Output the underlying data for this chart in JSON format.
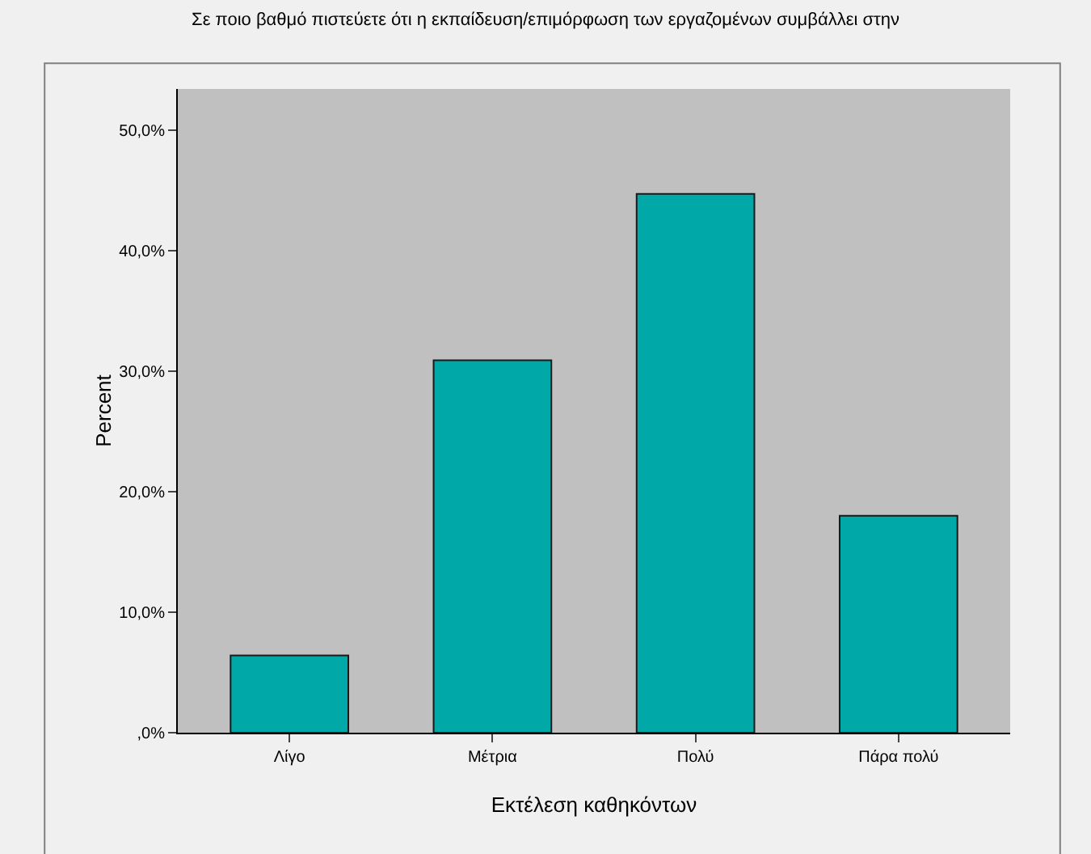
{
  "chart_data": {
    "type": "bar",
    "title": "Σε ποιο βαθμό πιστεύετε ότι η εκπαίδευση/επιμόρφωση των εργαζομένων συμβάλλει στην",
    "xlabel": "Εκτέλεση καθηκόντων",
    "ylabel": "Percent",
    "categories": [
      "Λίγο",
      "Μέτρια",
      "Πολύ",
      "Πάρα πολύ"
    ],
    "values": [
      6.4,
      30.9,
      44.7,
      18.0
    ],
    "color": "#00a8a8",
    "ylim": [
      0,
      53.4
    ],
    "yticks": [
      {
        "value": 0,
        "label": ",0%"
      },
      {
        "value": 10,
        "label": "10,0%"
      },
      {
        "value": 20,
        "label": "20,0%"
      },
      {
        "value": 30,
        "label": "30,0%"
      },
      {
        "value": 40,
        "label": "40,0%"
      },
      {
        "value": 50,
        "label": "50,0%"
      }
    ],
    "grid": false
  }
}
